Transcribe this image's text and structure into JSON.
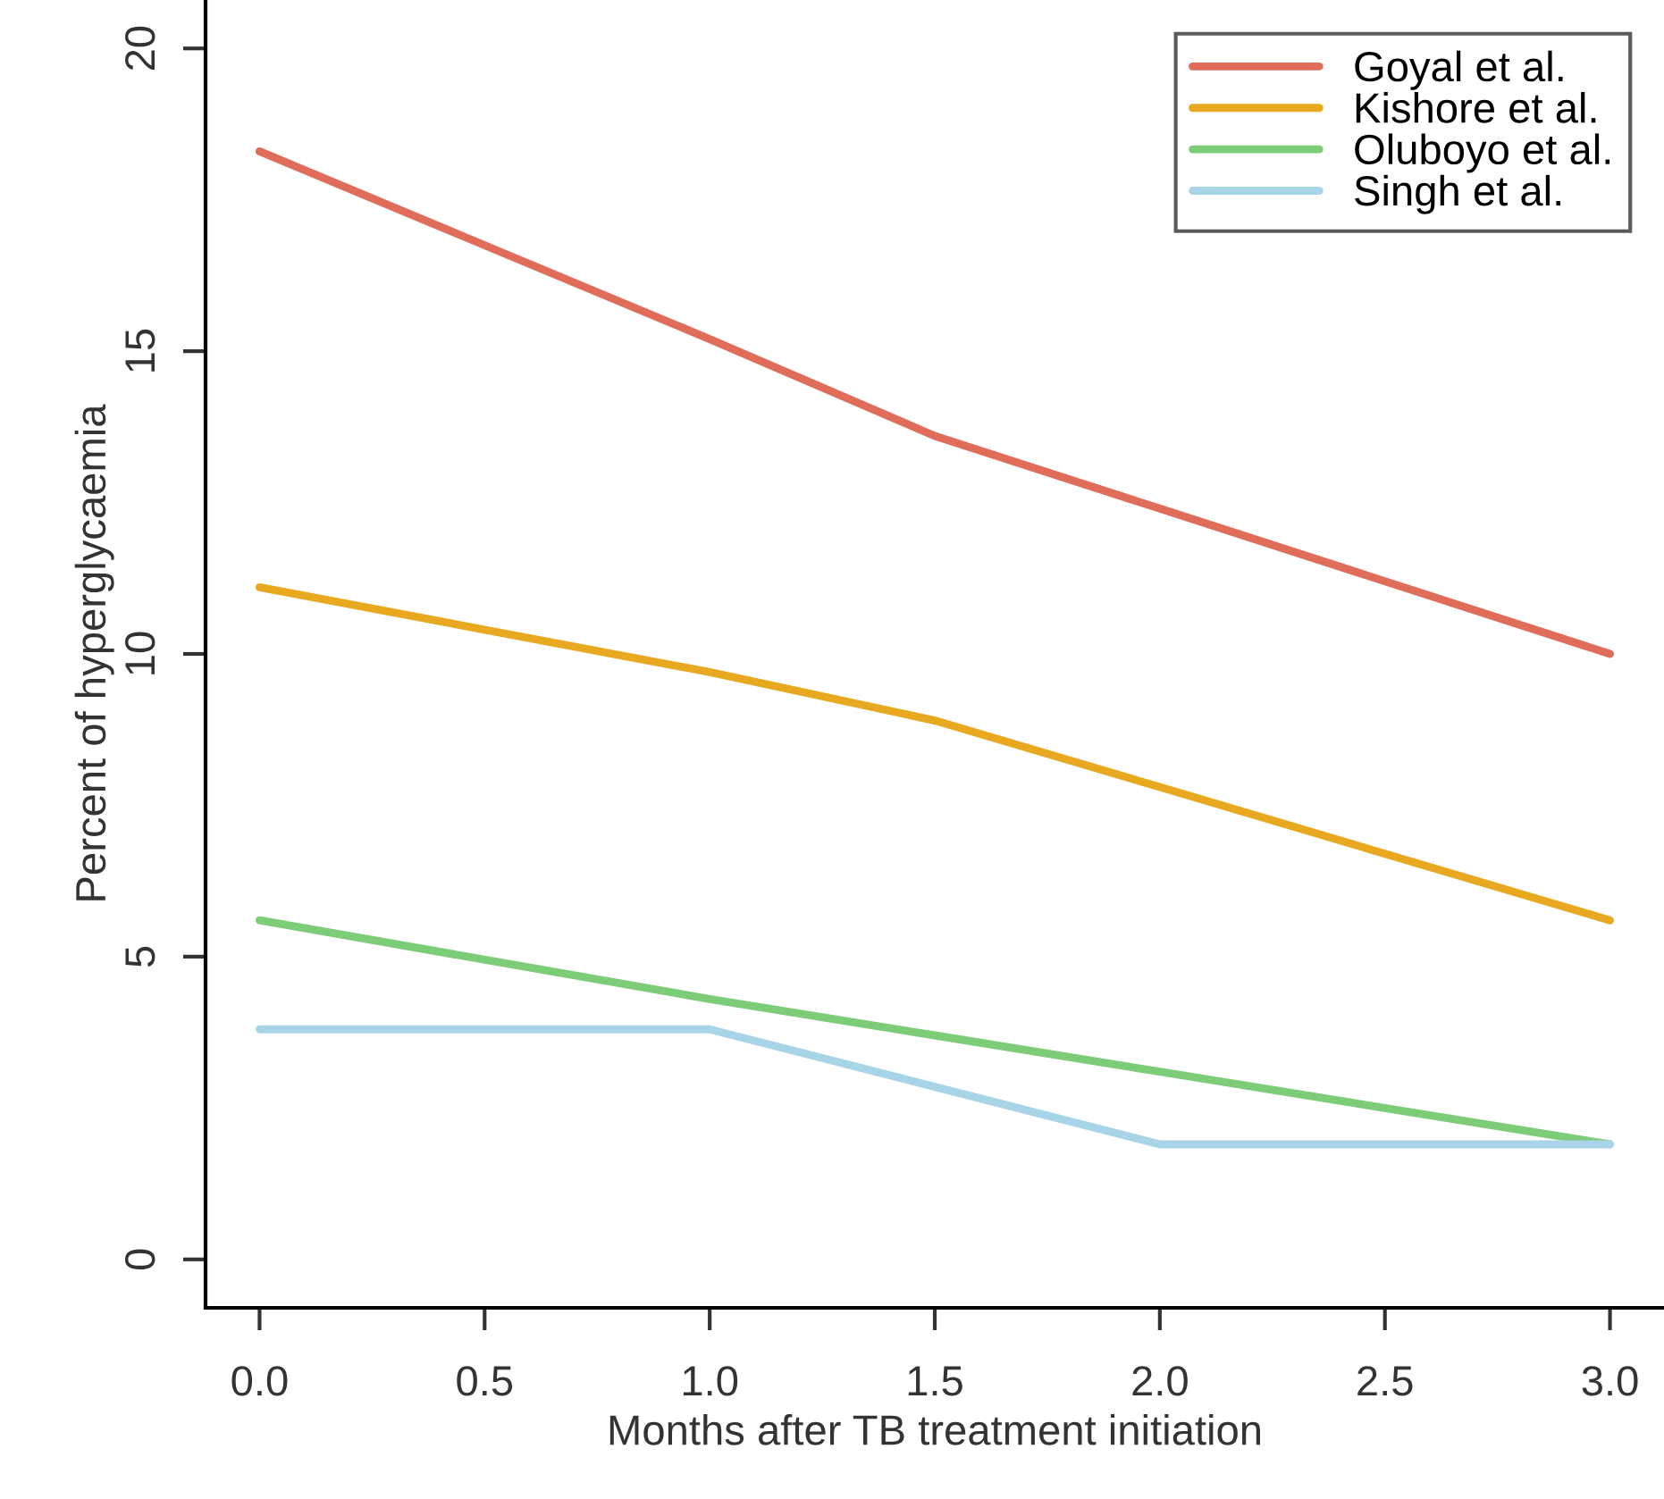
{
  "chart_data": {
    "type": "line",
    "xlabel": "Months after TB treatment initiation",
    "ylabel": "Percent of hyperglycaemia",
    "x": [
      0,
      1,
      1.5,
      2,
      3
    ],
    "series": [
      {
        "name": "Goyal et al.",
        "color": "#e06c5a",
        "values": [
          18.3,
          15.2,
          13.6,
          12.4,
          10.0
        ]
      },
      {
        "name": "Kishore et al.",
        "color": "#e8a820",
        "values": [
          11.1,
          9.7,
          8.9,
          7.8,
          5.6
        ]
      },
      {
        "name": "Oluboyo et al.",
        "color": "#7ccc78",
        "values": [
          5.6,
          4.3,
          3.7,
          3.1,
          1.9
        ]
      },
      {
        "name": "Singh et al.",
        "color": "#a8d4e8",
        "values": [
          3.8,
          3.8,
          2.85,
          1.9,
          1.9
        ]
      }
    ],
    "xlim": [
      -0.12,
      3.12
    ],
    "ylim": [
      -0.8,
      20.8
    ],
    "xticks": [
      {
        "value": 0,
        "label": "0.0"
      },
      {
        "value": 0.5,
        "label": "0.5"
      },
      {
        "value": 1,
        "label": "1.0"
      },
      {
        "value": 1.5,
        "label": "1.5"
      },
      {
        "value": 2,
        "label": "2.0"
      },
      {
        "value": 2.5,
        "label": "2.5"
      },
      {
        "value": 3,
        "label": "3.0"
      }
    ],
    "yticks": [
      0,
      5,
      10,
      15,
      20
    ],
    "legend": "top right",
    "grid": false,
    "marker": "none",
    "line_style": "solid"
  }
}
